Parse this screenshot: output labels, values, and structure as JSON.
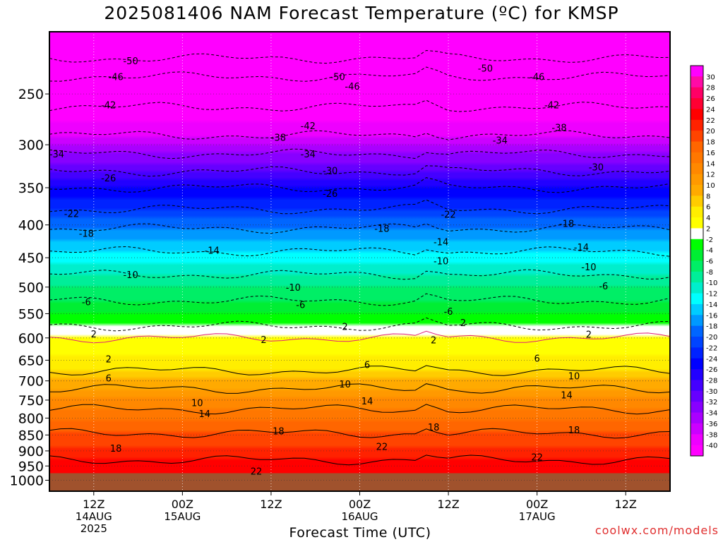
{
  "title": "2025081406 NAM Forecast Temperature (ºC) for KMSP",
  "footer": {
    "xlabel": "Forecast Time (UTC)",
    "credit": "coolwx.com/models"
  },
  "chart_data": {
    "type": "heatmap",
    "variable": "Temperature (ºC)",
    "x_ticks": [
      {
        "hours": 6,
        "label": "12Z",
        "date": "14AUG",
        "year": "2025"
      },
      {
        "hours": 18,
        "label": "00Z",
        "date": "15AUG"
      },
      {
        "hours": 30,
        "label": "12Z"
      },
      {
        "hours": 42,
        "label": "00Z",
        "date": "16AUG"
      },
      {
        "hours": 54,
        "label": "12Z"
      },
      {
        "hours": 66,
        "label": "00Z",
        "date": "17AUG"
      },
      {
        "hours": 78,
        "label": "12Z"
      }
    ],
    "y_axis": {
      "unit": "hPa",
      "range": [
        1040,
        200
      ],
      "ticks": [
        250,
        300,
        350,
        400,
        450,
        500,
        550,
        600,
        650,
        700,
        750,
        800,
        850,
        900,
        950,
        1000
      ]
    },
    "colorbar": {
      "labels": [
        30,
        28,
        26,
        24,
        22,
        20,
        18,
        16,
        14,
        12,
        10,
        8,
        6,
        4,
        2,
        -2,
        -4,
        -6,
        -8,
        -10,
        -12,
        -14,
        -16,
        -18,
        -20,
        -22,
        -24,
        -26,
        -28,
        -30,
        -32,
        -34,
        -36,
        -38,
        -40
      ],
      "colors": [
        "#ff00ff",
        "#ff0aa6",
        "#ff0066",
        "#ff0033",
        "#ff0000",
        "#ff2200",
        "#ff4400",
        "#ff6600",
        "#ff7700",
        "#ff8800",
        "#ff9900",
        "#ffaa00",
        "#ffcc00",
        "#ffee00",
        "#ffff00",
        "#ffffff",
        "#00ff00",
        "#00ee33",
        "#00ee66",
        "#00ee99",
        "#00eecc",
        "#00ffff",
        "#00ccff",
        "#0099ff",
        "#0066ff",
        "#0044ff",
        "#0022ff",
        "#0000ff",
        "#2200ff",
        "#4400ff",
        "#6600ff",
        "#8800ff",
        "#aa00ff",
        "#cc00ff",
        "#ee00ff",
        "#ff00ff"
      ]
    },
    "isotherms": [
      {
        "value": -50,
        "p": 220
      },
      {
        "value": -46,
        "p": 235
      },
      {
        "value": -42,
        "p": 262
      },
      {
        "value": -38,
        "p": 290
      },
      {
        "value": -34,
        "p": 310
      },
      {
        "value": -30,
        "p": 330
      },
      {
        "value": -26,
        "p": 350
      },
      {
        "value": -22,
        "p": 378
      },
      {
        "value": -18,
        "p": 405
      },
      {
        "value": -14,
        "p": 440
      },
      {
        "value": -10,
        "p": 478
      },
      {
        "value": -6,
        "p": 525
      },
      {
        "value": -2,
        "p": 575
      },
      {
        "value": 2,
        "p": 600
      },
      {
        "value": 6,
        "p": 675
      },
      {
        "value": 10,
        "p": 720
      },
      {
        "value": 14,
        "p": 775
      },
      {
        "value": 18,
        "p": 845
      },
      {
        "value": 22,
        "p": 930
      }
    ],
    "contour_labels": [
      {
        "hours": 11,
        "p": 222,
        "text": "-50"
      },
      {
        "hours": 39,
        "p": 235,
        "text": "-50"
      },
      {
        "hours": 59,
        "p": 228,
        "text": "-50"
      },
      {
        "hours": 9,
        "p": 235,
        "text": "-46"
      },
      {
        "hours": 41,
        "p": 243,
        "text": "-46"
      },
      {
        "hours": 66,
        "p": 235,
        "text": "-46"
      },
      {
        "hours": 8,
        "p": 260,
        "text": "-42"
      },
      {
        "hours": 35,
        "p": 280,
        "text": "-42"
      },
      {
        "hours": 68,
        "p": 260,
        "text": "-42"
      },
      {
        "hours": 31,
        "p": 292,
        "text": "-38"
      },
      {
        "hours": 69,
        "p": 282,
        "text": "-38"
      },
      {
        "hours": 1,
        "p": 310,
        "text": "-34"
      },
      {
        "hours": 35,
        "p": 310,
        "text": "-34"
      },
      {
        "hours": 61,
        "p": 295,
        "text": "-34"
      },
      {
        "hours": 38,
        "p": 329,
        "text": "-30"
      },
      {
        "hours": 74,
        "p": 325,
        "text": "-30"
      },
      {
        "hours": 8,
        "p": 338,
        "text": "-26"
      },
      {
        "hours": 38,
        "p": 357,
        "text": "-26"
      },
      {
        "hours": 3,
        "p": 384,
        "text": "-22"
      },
      {
        "hours": 54,
        "p": 385,
        "text": "-22"
      },
      {
        "hours": 5,
        "p": 412,
        "text": "-18"
      },
      {
        "hours": 45,
        "p": 405,
        "text": "-18"
      },
      {
        "hours": 70,
        "p": 398,
        "text": "-18"
      },
      {
        "hours": 22,
        "p": 438,
        "text": "-14"
      },
      {
        "hours": 53,
        "p": 425,
        "text": "-14"
      },
      {
        "hours": 72,
        "p": 433,
        "text": "-14"
      },
      {
        "hours": 11,
        "p": 478,
        "text": "-10"
      },
      {
        "hours": 33,
        "p": 500,
        "text": "-10"
      },
      {
        "hours": 53,
        "p": 455,
        "text": "-10"
      },
      {
        "hours": 73,
        "p": 465,
        "text": "-10"
      },
      {
        "hours": 5,
        "p": 527,
        "text": "-6"
      },
      {
        "hours": 34,
        "p": 532,
        "text": "-6"
      },
      {
        "hours": 54,
        "p": 545,
        "text": "-6"
      },
      {
        "hours": 75,
        "p": 498,
        "text": "-6"
      },
      {
        "hours": 6,
        "p": 591,
        "text": "2"
      },
      {
        "hours": 40,
        "p": 576,
        "text": "2"
      },
      {
        "hours": 29,
        "p": 603,
        "text": "2"
      },
      {
        "hours": 52,
        "p": 604,
        "text": "2"
      },
      {
        "hours": 56,
        "p": 568,
        "text": "2"
      },
      {
        "hours": 73,
        "p": 592,
        "text": "2"
      },
      {
        "hours": 8,
        "p": 647,
        "text": "2"
      },
      {
        "hours": 43,
        "p": 660,
        "text": "6"
      },
      {
        "hours": 8,
        "p": 693,
        "text": "6"
      },
      {
        "hours": 66,
        "p": 645,
        "text": "6"
      },
      {
        "hours": 20,
        "p": 757,
        "text": "10"
      },
      {
        "hours": 40,
        "p": 708,
        "text": "10"
      },
      {
        "hours": 71,
        "p": 687,
        "text": "10"
      },
      {
        "hours": 21,
        "p": 787,
        "text": "14"
      },
      {
        "hours": 43,
        "p": 752,
        "text": "14"
      },
      {
        "hours": 70,
        "p": 736,
        "text": "14"
      },
      {
        "hours": 9,
        "p": 891,
        "text": "18"
      },
      {
        "hours": 31,
        "p": 838,
        "text": "18"
      },
      {
        "hours": 52,
        "p": 826,
        "text": "18"
      },
      {
        "hours": 71,
        "p": 834,
        "text": "18"
      },
      {
        "hours": 28,
        "p": 968,
        "text": "22"
      },
      {
        "hours": 45,
        "p": 885,
        "text": "22"
      },
      {
        "hours": 66,
        "p": 920,
        "text": "22"
      }
    ]
  }
}
